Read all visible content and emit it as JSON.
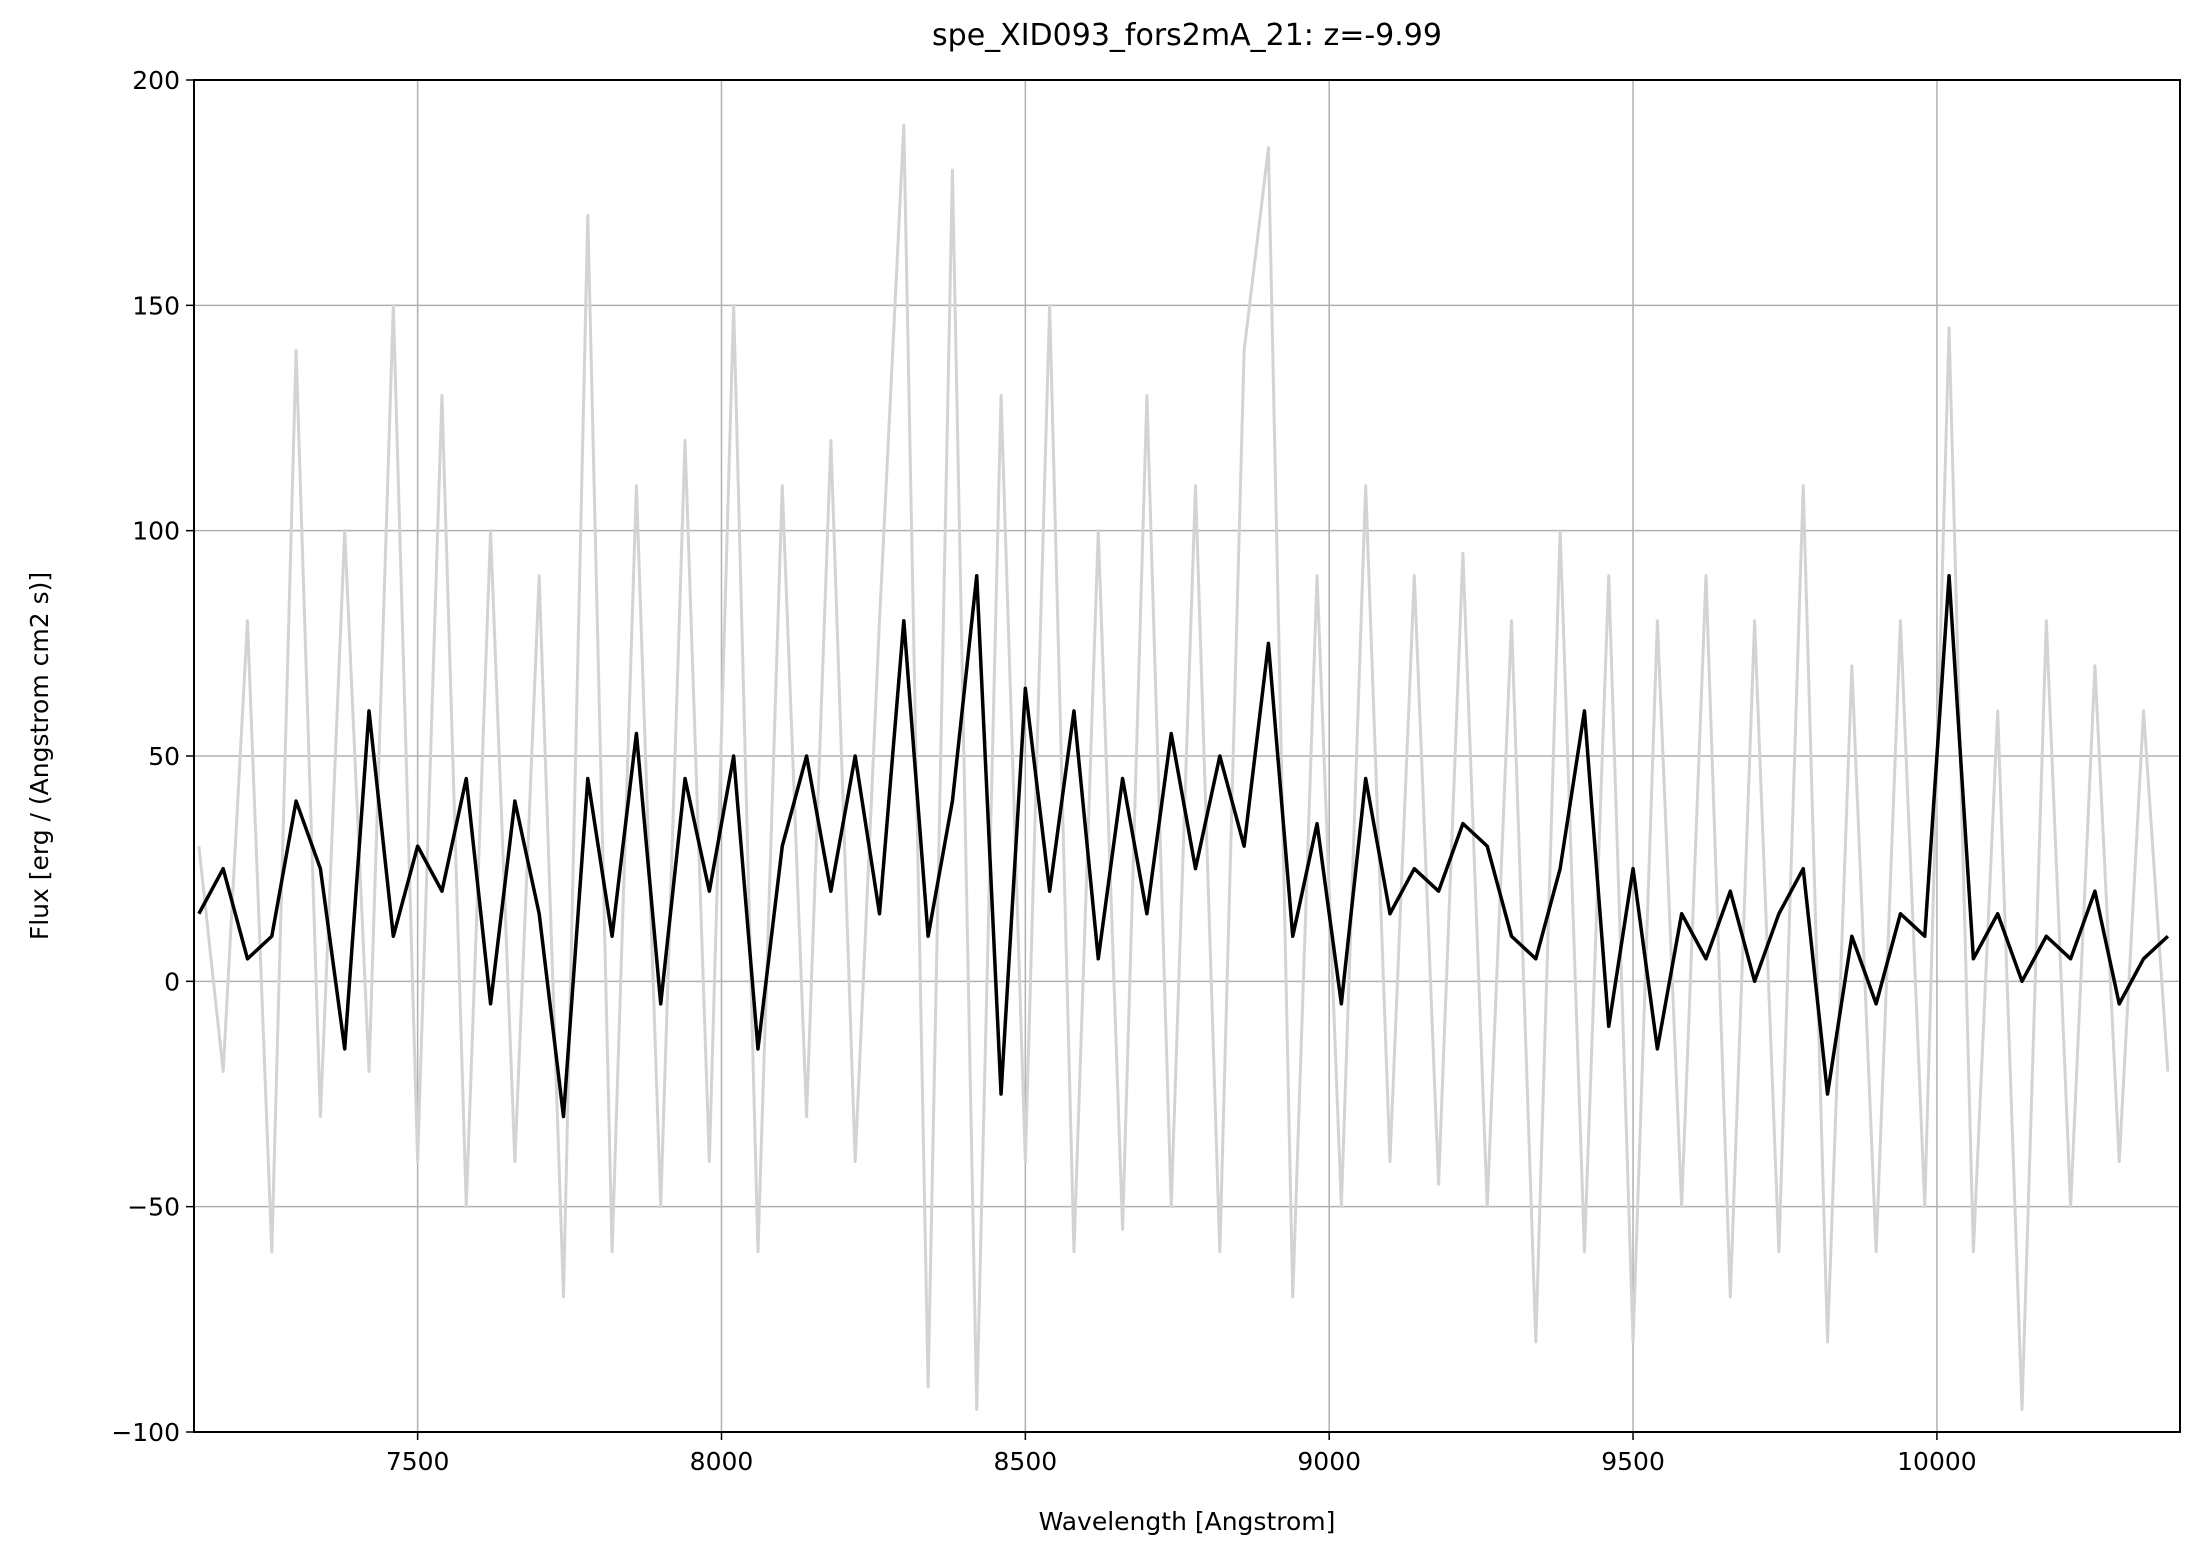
{
  "chart_data": {
    "type": "line",
    "title": "spe_XID093_fors2mA_21: z=-9.99",
    "x_label": "Wavelength [Angstrom]",
    "y_label": "Flux [erg / (Angstrom cm2 s)]",
    "x": [
      7140,
      7180,
      7220,
      7260,
      7300,
      7340,
      7380,
      7420,
      7460,
      7500,
      7540,
      7580,
      7620,
      7660,
      7700,
      7740,
      7780,
      7820,
      7860,
      7900,
      7940,
      7980,
      8020,
      8060,
      8100,
      8140,
      8180,
      8220,
      8260,
      8300,
      8340,
      8380,
      8420,
      8460,
      8500,
      8540,
      8580,
      8620,
      8660,
      8700,
      8740,
      8780,
      8820,
      8860,
      8900,
      8940,
      8980,
      9020,
      9060,
      9100,
      9140,
      9180,
      9220,
      9260,
      9300,
      9340,
      9380,
      9420,
      9460,
      9500,
      9540,
      9580,
      9620,
      9660,
      9700,
      9740,
      9780,
      9820,
      9860,
      9900,
      9940,
      9980,
      10020,
      10060,
      10100,
      10140,
      10180,
      10220,
      10260,
      10300,
      10340,
      10380
    ],
    "series": [
      {
        "color": "#d3d3d3",
        "values": [
          30,
          -20,
          80,
          -60,
          140,
          -30,
          100,
          -20,
          150,
          -40,
          130,
          -50,
          100,
          -40,
          90,
          -70,
          170,
          -60,
          110,
          -50,
          120,
          -40,
          150,
          -60,
          110,
          -30,
          120,
          -40,
          80,
          190,
          -90,
          180,
          -95,
          130,
          -40,
          150,
          -60,
          100,
          -55,
          130,
          -50,
          110,
          -60,
          140,
          185,
          -70,
          90,
          -50,
          110,
          -40,
          90,
          -45,
          95,
          -50,
          80,
          -80,
          100,
          -60,
          90,
          -80,
          80,
          -50,
          90,
          -70,
          80,
          -60,
          110,
          -80,
          70,
          -60,
          80,
          -50,
          145,
          -60,
          60,
          -95,
          80,
          -50,
          70,
          -40,
          60,
          -20
        ]
      },
      {
        "color": "#000000",
        "values": [
          15,
          25,
          5,
          10,
          40,
          25,
          -15,
          60,
          10,
          30,
          20,
          45,
          -5,
          40,
          15,
          -30,
          45,
          10,
          55,
          -5,
          45,
          20,
          50,
          -15,
          30,
          50,
          20,
          50,
          15,
          80,
          10,
          40,
          90,
          -25,
          65,
          20,
          60,
          5,
          45,
          15,
          55,
          25,
          50,
          30,
          75,
          10,
          35,
          -5,
          45,
          15,
          25,
          20,
          35,
          30,
          10,
          5,
          25,
          60,
          -10,
          25,
          -15,
          15,
          5,
          20,
          0,
          15,
          25,
          -25,
          10,
          -5,
          15,
          10,
          90,
          5,
          15,
          0,
          10,
          5,
          20,
          -5,
          5,
          10
        ]
      }
    ],
    "xlim": [
      7132,
      10400
    ],
    "ylim": [
      -100,
      200
    ],
    "xticks": [
      7500,
      8000,
      8500,
      9000,
      9500,
      10000
    ],
    "yticks": [
      {
        "value": -100,
        "label": "−100"
      },
      {
        "value": -50,
        "label": "−50"
      },
      0,
      50,
      100,
      150,
      200
    ],
    "grid": true
  }
}
